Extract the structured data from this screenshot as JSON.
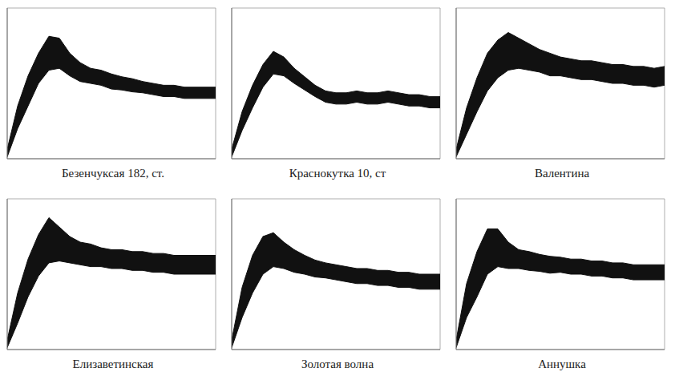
{
  "chart_data": [
    {
      "type": "area",
      "title": "Безенчуксая 182, ст.",
      "color": "#111111",
      "grid": true,
      "tick_labels": false,
      "xlim": [
        0,
        20
      ],
      "xticks": [
        0,
        2,
        4,
        6,
        8,
        10,
        12,
        14,
        16,
        18,
        20
      ],
      "ylim": [
        0,
        8
      ],
      "yticks": [
        0,
        1,
        2,
        3,
        4,
        5,
        6,
        7,
        8
      ],
      "x": [
        0,
        1,
        2,
        3,
        4,
        5,
        6,
        7,
        8,
        9,
        10,
        11,
        12,
        13,
        14,
        15,
        16,
        17,
        18,
        19,
        20
      ],
      "values": [
        0.3,
        2.2,
        3.6,
        4.8,
        5.6,
        5.6,
        5.0,
        4.6,
        4.4,
        4.3,
        4.1,
        4.0,
        3.9,
        3.8,
        3.7,
        3.6,
        3.6,
        3.5,
        3.5,
        3.5,
        3.5
      ],
      "error": [
        0.2,
        0.6,
        0.8,
        0.8,
        0.9,
        0.8,
        0.6,
        0.5,
        0.4,
        0.4,
        0.4,
        0.35,
        0.35,
        0.3,
        0.3,
        0.3,
        0.3,
        0.3,
        0.3,
        0.3,
        0.3
      ]
    },
    {
      "type": "area",
      "title": "Краснокутка 10, ст",
      "color": "#111111",
      "grid": true,
      "tick_labels": false,
      "xlim": [
        0,
        20
      ],
      "xticks": [
        0,
        2,
        4,
        6,
        8,
        10,
        12,
        14,
        16,
        18,
        20
      ],
      "ylim": [
        0,
        8
      ],
      "yticks": [
        0,
        1,
        2,
        3,
        4,
        5,
        6,
        7,
        8
      ],
      "x": [
        0,
        1,
        2,
        3,
        4,
        5,
        6,
        7,
        8,
        9,
        10,
        11,
        12,
        13,
        14,
        15,
        16,
        17,
        18,
        19,
        20
      ],
      "values": [
        0.3,
        2.0,
        3.3,
        4.4,
        5.1,
        4.9,
        4.4,
        4.0,
        3.6,
        3.3,
        3.2,
        3.2,
        3.3,
        3.2,
        3.2,
        3.3,
        3.2,
        3.1,
        3.1,
        3.0,
        3.0
      ],
      "error": [
        0.2,
        0.5,
        0.6,
        0.6,
        0.6,
        0.5,
        0.4,
        0.35,
        0.3,
        0.3,
        0.3,
        0.3,
        0.3,
        0.3,
        0.3,
        0.3,
        0.3,
        0.3,
        0.3,
        0.3,
        0.3
      ]
    },
    {
      "type": "area",
      "title": "Валентина",
      "color": "#111111",
      "grid": true,
      "tick_labels": false,
      "xlim": [
        0,
        20
      ],
      "xticks": [
        0,
        2,
        4,
        6,
        8,
        10,
        12,
        14,
        16,
        18,
        20
      ],
      "ylim": [
        0,
        8
      ],
      "yticks": [
        0,
        1,
        2,
        3,
        4,
        5,
        6,
        7,
        8
      ],
      "x": [
        0,
        1,
        2,
        3,
        4,
        5,
        6,
        7,
        8,
        9,
        10,
        11,
        12,
        13,
        14,
        15,
        16,
        17,
        18,
        19,
        20
      ],
      "values": [
        0.3,
        2.0,
        3.4,
        4.6,
        5.3,
        5.7,
        5.6,
        5.4,
        5.2,
        5.0,
        4.9,
        4.8,
        4.7,
        4.7,
        4.6,
        4.5,
        4.5,
        4.4,
        4.4,
        4.3,
        4.4
      ],
      "error": [
        0.2,
        0.7,
        0.9,
        1.0,
        1.0,
        1.0,
        0.8,
        0.7,
        0.6,
        0.6,
        0.5,
        0.5,
        0.5,
        0.5,
        0.5,
        0.5,
        0.5,
        0.5,
        0.5,
        0.5,
        0.5
      ]
    },
    {
      "type": "area",
      "title": "Елизаветинская",
      "color": "#111111",
      "grid": true,
      "tick_labels": false,
      "xlim": [
        0,
        20
      ],
      "xticks": [
        0,
        2,
        4,
        6,
        8,
        10,
        12,
        14,
        16,
        18,
        20
      ],
      "ylim": [
        0,
        8
      ],
      "yticks": [
        0,
        1,
        2,
        3,
        4,
        5,
        6,
        7,
        8
      ],
      "x": [
        0,
        1,
        2,
        3,
        4,
        5,
        6,
        7,
        8,
        9,
        10,
        11,
        12,
        13,
        14,
        15,
        16,
        17,
        18,
        19,
        20
      ],
      "values": [
        0.3,
        2.2,
        3.8,
        5.0,
        5.8,
        5.6,
        5.3,
        5.1,
        5.0,
        4.9,
        4.8,
        4.8,
        4.7,
        4.7,
        4.6,
        4.6,
        4.5,
        4.5,
        4.5,
        4.5,
        4.5
      ],
      "error": [
        0.2,
        0.8,
        1.0,
        1.1,
        1.2,
        0.9,
        0.7,
        0.6,
        0.6,
        0.5,
        0.5,
        0.5,
        0.5,
        0.5,
        0.5,
        0.5,
        0.5,
        0.5,
        0.5,
        0.5,
        0.5
      ]
    },
    {
      "type": "area",
      "title": "Золотая волна",
      "color": "#111111",
      "grid": true,
      "tick_labels": false,
      "xlim": [
        0,
        20
      ],
      "xticks": [
        0,
        2,
        4,
        6,
        8,
        10,
        12,
        14,
        16,
        18,
        20
      ],
      "ylim": [
        0,
        8
      ],
      "yticks": [
        0,
        1,
        2,
        3,
        4,
        5,
        6,
        7,
        8
      ],
      "x": [
        0,
        1,
        2,
        3,
        4,
        5,
        6,
        7,
        8,
        9,
        10,
        11,
        12,
        13,
        14,
        15,
        16,
        17,
        18,
        19,
        20
      ],
      "values": [
        0.3,
        2.5,
        4.0,
        5.0,
        5.3,
        5.0,
        4.7,
        4.5,
        4.3,
        4.2,
        4.1,
        4.0,
        3.9,
        3.9,
        3.8,
        3.8,
        3.7,
        3.7,
        3.6,
        3.6,
        3.6
      ],
      "error": [
        0.2,
        0.8,
        1.0,
        1.0,
        0.9,
        0.7,
        0.6,
        0.5,
        0.45,
        0.4,
        0.4,
        0.4,
        0.4,
        0.4,
        0.4,
        0.4,
        0.4,
        0.4,
        0.4,
        0.4,
        0.4
      ]
    },
    {
      "type": "area",
      "title": "Аннушка",
      "color": "#111111",
      "grid": true,
      "tick_labels": false,
      "xlim": [
        0,
        20
      ],
      "xticks": [
        0,
        2,
        4,
        6,
        8,
        10,
        12,
        14,
        16,
        18,
        20
      ],
      "ylim": [
        0,
        8
      ],
      "yticks": [
        0,
        1,
        2,
        3,
        4,
        5,
        6,
        7,
        8
      ],
      "x": [
        0,
        1,
        2,
        3,
        4,
        5,
        6,
        7,
        8,
        9,
        10,
        11,
        12,
        13,
        14,
        15,
        16,
        17,
        18,
        19,
        20
      ],
      "values": [
        0.3,
        2.6,
        4.0,
        5.2,
        5.4,
        5.0,
        4.8,
        4.7,
        4.6,
        4.5,
        4.5,
        4.4,
        4.4,
        4.3,
        4.3,
        4.2,
        4.2,
        4.1,
        4.1,
        4.1,
        4.1
      ],
      "error": [
        0.2,
        0.9,
        1.2,
        1.2,
        1.0,
        0.7,
        0.5,
        0.5,
        0.45,
        0.45,
        0.4,
        0.4,
        0.4,
        0.4,
        0.4,
        0.4,
        0.4,
        0.4,
        0.4,
        0.4,
        0.4
      ]
    }
  ]
}
